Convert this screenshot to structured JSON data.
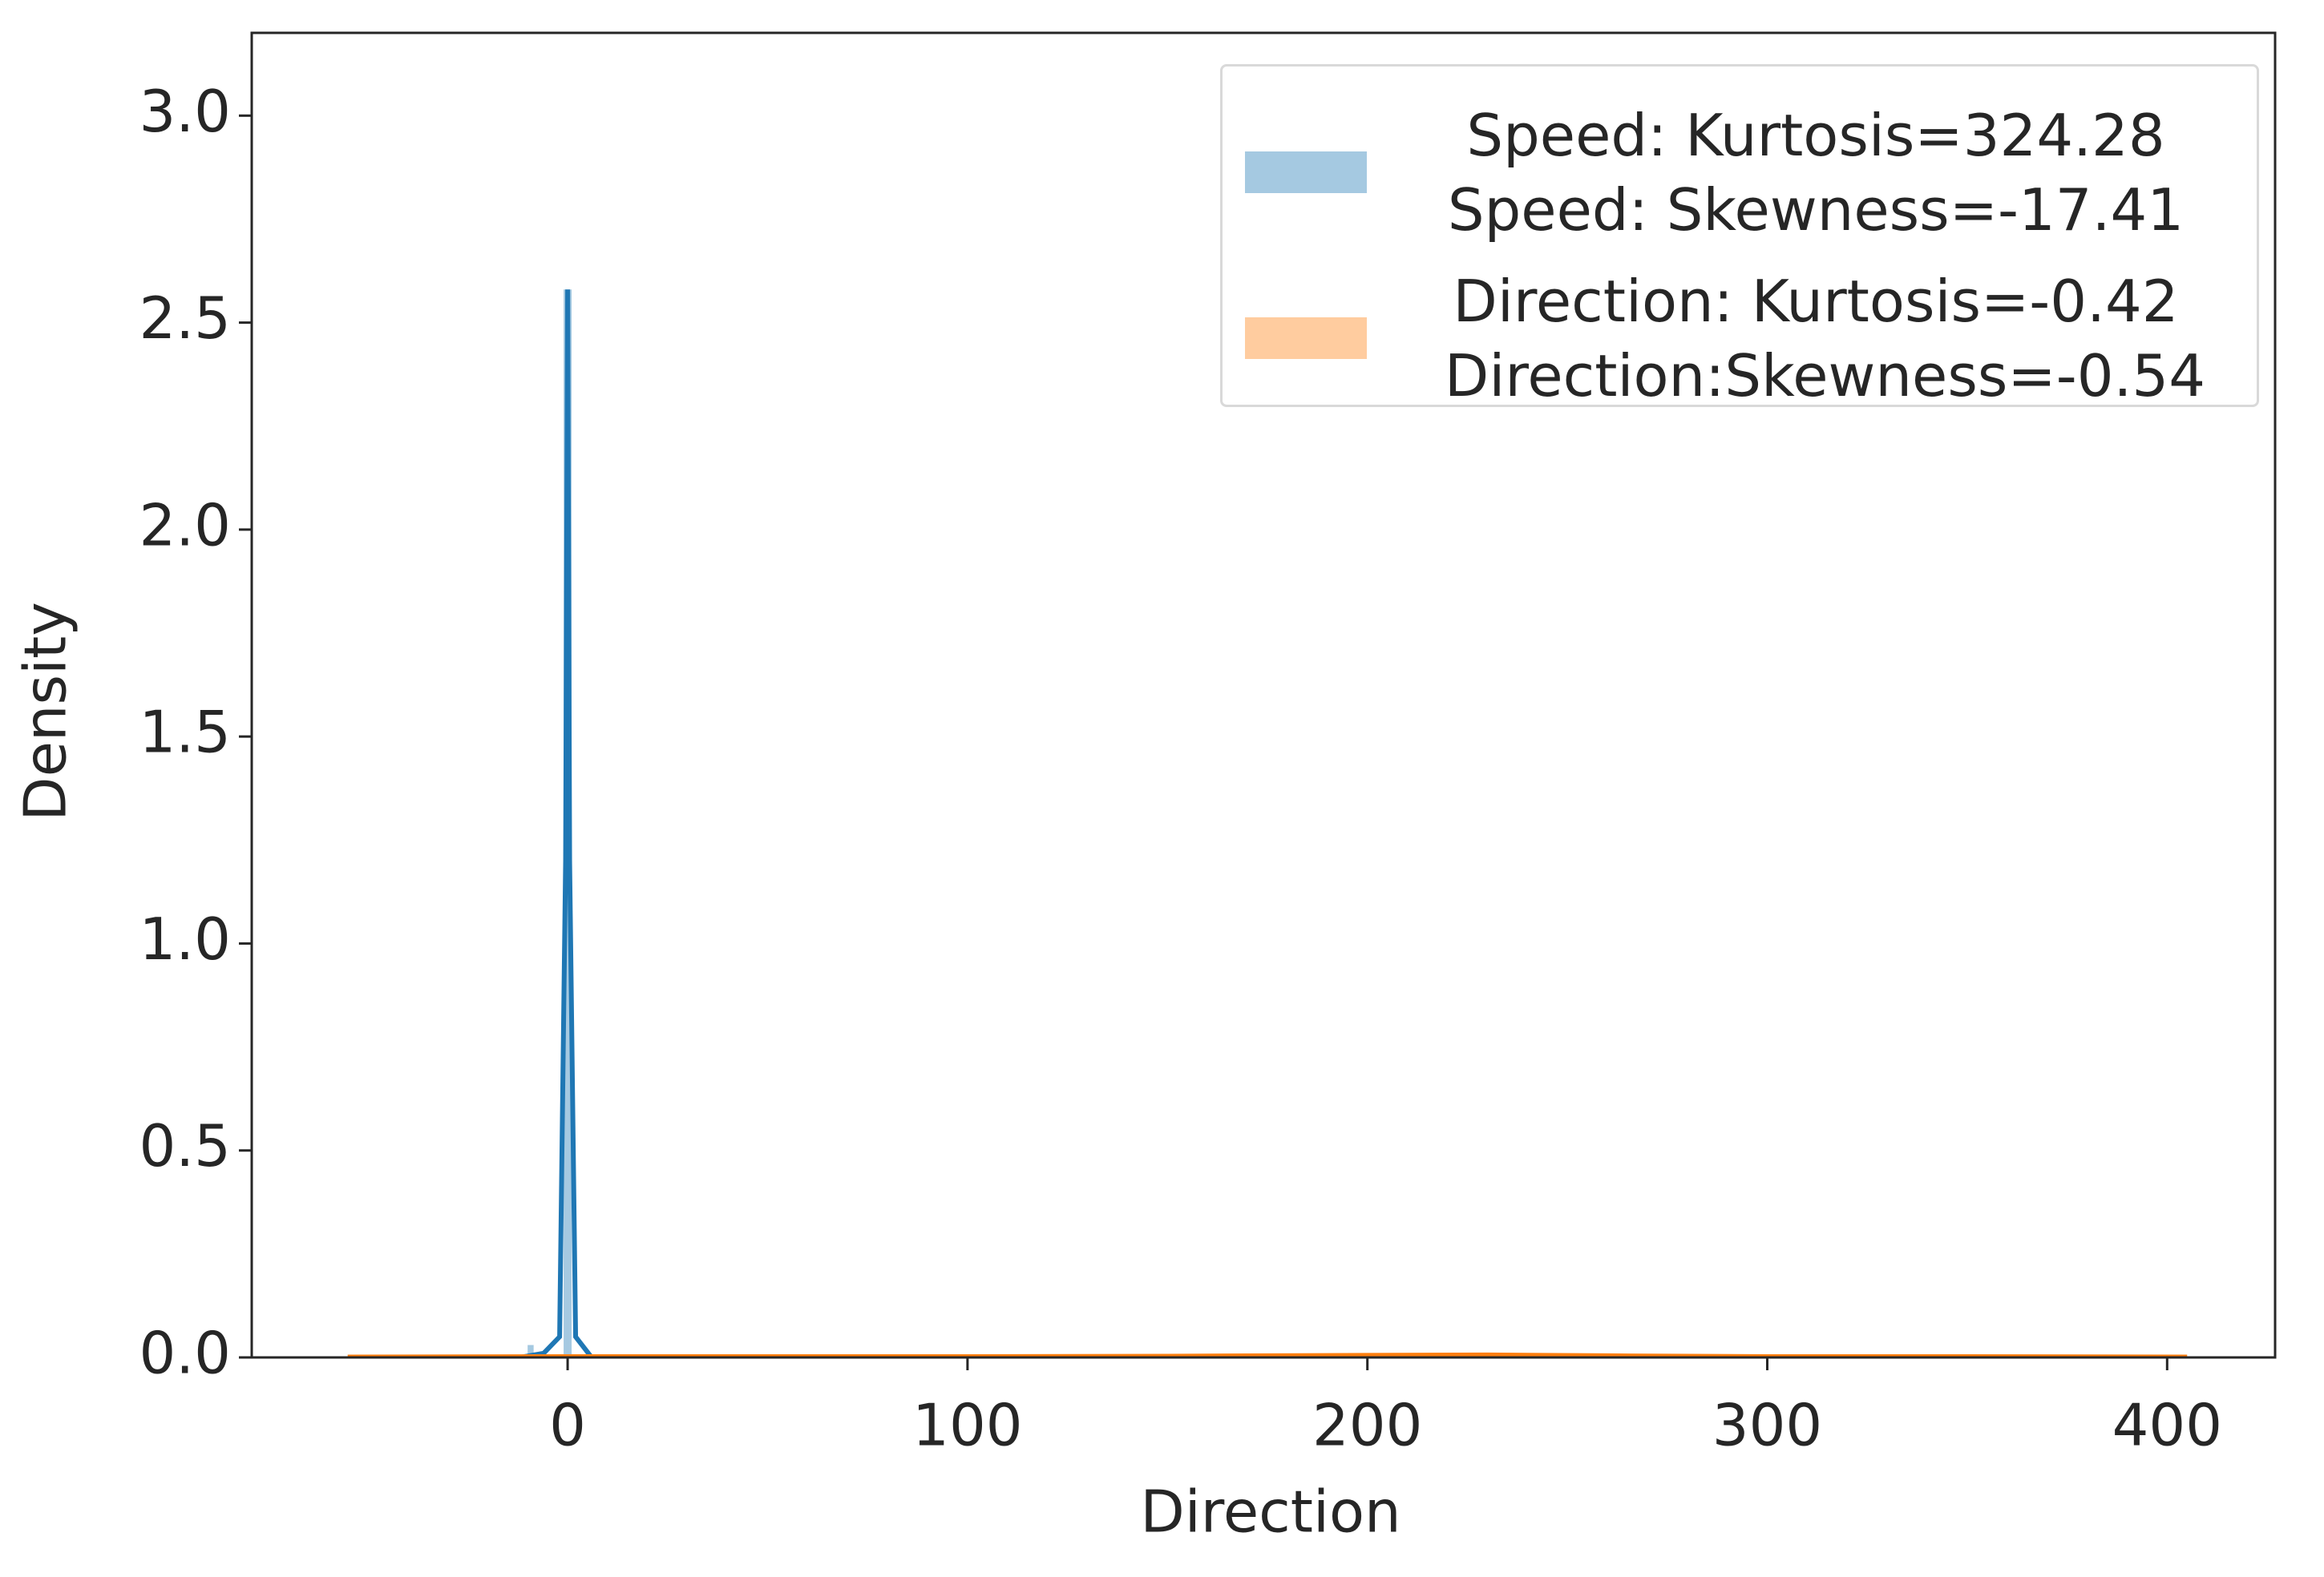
{
  "chart_data": {
    "type": "histogram",
    "x_label": "Direction",
    "y_label": "Density",
    "xlim": [
      -79,
      427
    ],
    "ylim": [
      0,
      3.2
    ],
    "xticks": [
      0,
      100,
      200,
      300,
      400
    ],
    "yticks": [
      {
        "value": 0,
        "label": "0.0"
      },
      {
        "value": 0.5,
        "label": "0.5"
      },
      {
        "value": 1,
        "label": "1.0"
      },
      {
        "value": 1.5,
        "label": "1.5"
      },
      {
        "value": 2,
        "label": "2.0"
      },
      {
        "value": 2.5,
        "label": "2.5"
      },
      {
        "value": 3,
        "label": "3.0"
      }
    ],
    "legend": "upper right",
    "series": [
      {
        "name": "Speed: Kurtosis=324.28\nSpeed: Skewness=-17.41",
        "color": "#1f77b4",
        "bins": [
          -10,
          -8.5,
          -7,
          -5.5,
          -4,
          -2.5,
          -1,
          1
        ],
        "values": [
          0.03,
          0.0,
          0.0,
          0.0,
          0.0,
          0.0,
          2.58
        ],
        "kde_x": [
          -12,
          -6,
          -2,
          -0.5,
          0,
          0.5,
          2,
          6
        ],
        "kde_values": [
          0,
          0.01,
          0.05,
          1.2,
          2.58,
          1.2,
          0.05,
          0
        ]
      },
      {
        "name": "Direction: Kurtosis=-0.42\n Direction:Skewness=-0.54",
        "color": "#ff7f0e",
        "bins": [
          0,
          36,
          72,
          108,
          144,
          180,
          216,
          252,
          288,
          324,
          360
        ],
        "values": [
          0.002,
          0.002,
          0.002,
          0.003,
          0.004,
          0.005,
          0.006,
          0.004,
          0.002,
          0.002
        ],
        "kde_x": [
          -55,
          0,
          50,
          100,
          150,
          200,
          230,
          260,
          300,
          350,
          405
        ],
        "kde_values": [
          0.001,
          0.002,
          0.002,
          0.002,
          0.003,
          0.005,
          0.006,
          0.004,
          0.002,
          0.002,
          0.001
        ]
      }
    ]
  }
}
